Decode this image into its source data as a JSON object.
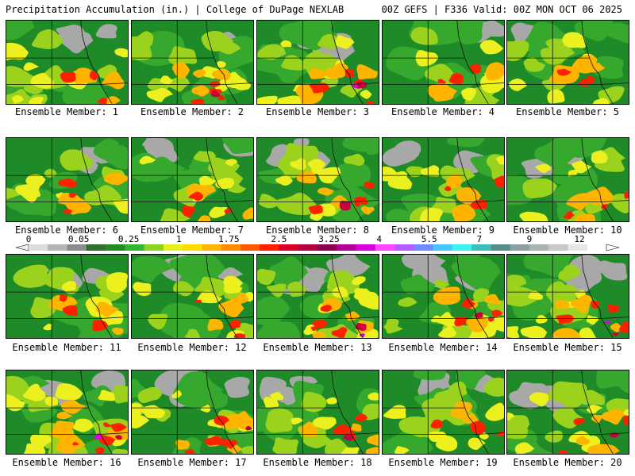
{
  "header": {
    "left_title": "Precipitation Accumulation (in.) | College of DuPage NEXLAB",
    "right_title": "00Z GEFS | F336 Valid: 00Z MON OCT 06 2025"
  },
  "colorbar": {
    "tick_labels": [
      "0",
      "0.05",
      "0.25",
      "1",
      "1.75",
      "2.5",
      "3.25",
      "4",
      "5.5",
      "7",
      "9",
      "12"
    ],
    "colors": [
      "#dcdcdc",
      "#b4b4b4",
      "#8c8c8c",
      "#2e6e2e",
      "#228b22",
      "#32b432",
      "#8cd21e",
      "#e6f01e",
      "#ffdc00",
      "#ffb400",
      "#ff8c00",
      "#ff5a00",
      "#ff1e00",
      "#dc0028",
      "#b4003c",
      "#8c0050",
      "#b40096",
      "#dc00dc",
      "#ff46ff",
      "#b45aff",
      "#6e8cff",
      "#46c8ff",
      "#3cf0f0",
      "#3cbebe",
      "#5a8c8c",
      "#8ca0a0",
      "#aab4b4",
      "#c8c8c8",
      "#e6e6e6",
      "#ffffff"
    ],
    "palette": {
      "gray": "#a8a8a8",
      "green_dark": "#1e7a28",
      "green": "#37a82e",
      "lime": "#9ad21e",
      "yellow": "#ecf01e",
      "orange": "#ffb400",
      "red": "#ff2000",
      "darkred": "#c8003c",
      "magenta": "#e000e0",
      "cyan": "#3ce6f0"
    }
  },
  "panels": [
    {
      "label": "Ensemble Member: 1",
      "wet": 0.45,
      "seed": 11
    },
    {
      "label": "Ensemble Member: 2",
      "wet": 0.5,
      "seed": 23
    },
    {
      "label": "Ensemble Member: 3",
      "wet": 0.6,
      "seed": 37
    },
    {
      "label": "Ensemble Member: 4",
      "wet": 0.3,
      "seed": 41
    },
    {
      "label": "Ensemble Member: 5",
      "wet": 0.4,
      "seed": 53
    },
    {
      "label": "Ensemble Member: 6",
      "wet": 0.3,
      "seed": 67
    },
    {
      "label": "Ensemble Member: 7",
      "wet": 0.4,
      "seed": 71
    },
    {
      "label": "Ensemble Member: 8",
      "wet": 0.55,
      "seed": 83
    },
    {
      "label": "Ensemble Member: 9",
      "wet": 0.35,
      "seed": 97
    },
    {
      "label": "Ensemble Member: 10",
      "wet": 0.4,
      "seed": 101
    },
    {
      "label": "Ensemble Member: 11",
      "wet": 0.4,
      "seed": 113
    },
    {
      "label": "Ensemble Member: 12",
      "wet": 0.4,
      "seed": 127
    },
    {
      "label": "Ensemble Member: 13",
      "wet": 0.6,
      "seed": 131
    },
    {
      "label": "Ensemble Member: 14",
      "wet": 0.5,
      "seed": 149
    },
    {
      "label": "Ensemble Member: 15",
      "wet": 0.6,
      "seed": 157
    },
    {
      "label": "Ensemble Member: 16",
      "wet": 0.7,
      "seed": 163
    },
    {
      "label": "Ensemble Member: 17",
      "wet": 0.5,
      "seed": 173
    },
    {
      "label": "Ensemble Member: 18",
      "wet": 0.5,
      "seed": 181
    },
    {
      "label": "Ensemble Member: 19",
      "wet": 0.45,
      "seed": 191
    },
    {
      "label": "Ensemble Member: 20",
      "wet": 0.55,
      "seed": 199
    }
  ]
}
